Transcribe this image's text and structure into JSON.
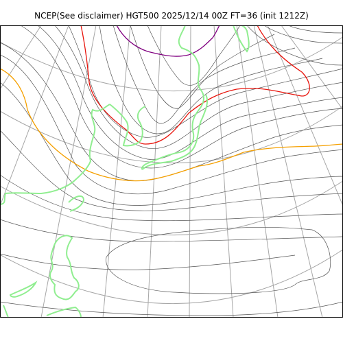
{
  "figure": {
    "title": "NCEP(See disclaimer) HGT500 2025/12/14 00Z FT=36 (init 1212Z)"
  },
  "map": {
    "projection": "polar stereographic",
    "field": "500 hPa geopotential height contours",
    "colors": {
      "contour": "#555555",
      "graticule": "#a6a6a6",
      "coastline": "#90ee90",
      "highlight_red": "#e8140c",
      "highlight_orange": "#f5a000",
      "highlight_purple": "#800080"
    }
  }
}
